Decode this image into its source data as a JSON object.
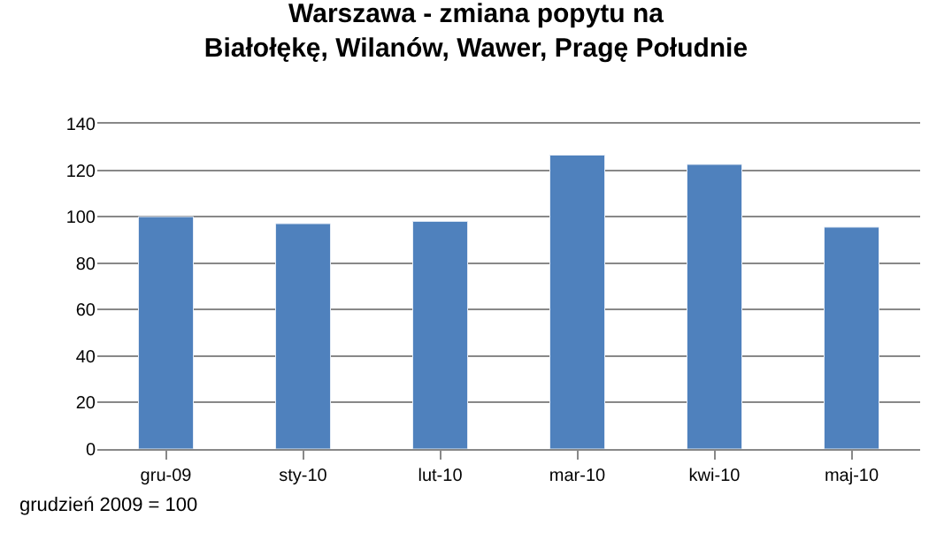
{
  "chart_data": {
    "type": "bar",
    "title": "Warszawa - zmiana popytu na\nBiałołękę, Wilanów, Wawer, Pragę Południe",
    "categories": [
      "gru-09",
      "sty-10",
      "lut-10",
      "mar-10",
      "kwi-10",
      "maj-10"
    ],
    "values": [
      100,
      97,
      98,
      126.5,
      122.5,
      95.5
    ],
    "color": "#4f81bd",
    "ylim": [
      0,
      140
    ],
    "yticks": [
      0,
      20,
      40,
      60,
      80,
      100,
      120,
      140
    ],
    "grid": "y",
    "annotations": [
      "grudzień 2009 = 100"
    ]
  }
}
